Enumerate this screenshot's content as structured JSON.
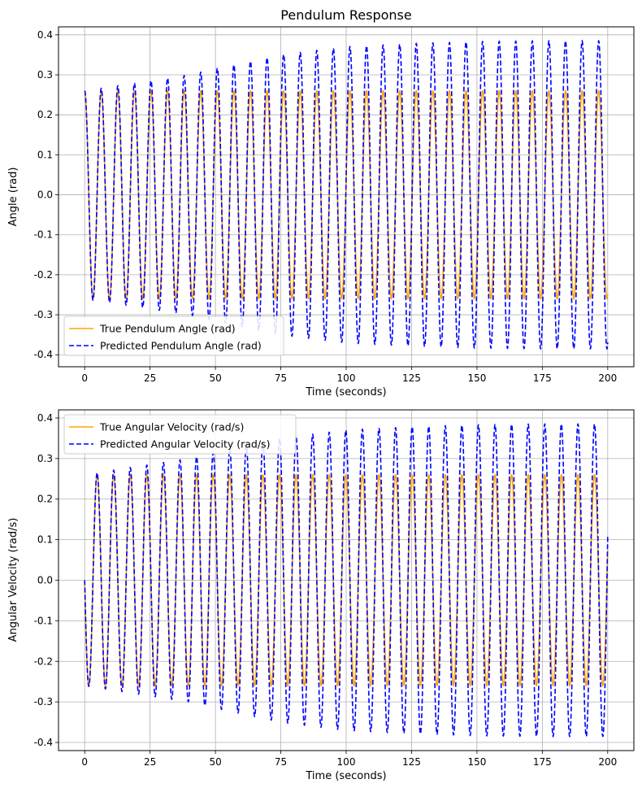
{
  "figure": {
    "background": "#ffffff"
  },
  "colors": {
    "true_line": "#ffa500",
    "pred_line": "#0000ff",
    "grid": "#b0b0b0"
  },
  "chart_data": [
    {
      "type": "line",
      "title": "Pendulum Response",
      "xlabel": "Time (seconds)",
      "ylabel": "Angle (rad)",
      "xlim": [
        -10,
        210
      ],
      "ylim": [
        -0.43,
        0.42
      ],
      "xticks": [
        0,
        25,
        50,
        75,
        100,
        125,
        150,
        175,
        200
      ],
      "yticks": [
        -0.4,
        -0.3,
        -0.2,
        -0.1,
        0.0,
        0.1,
        0.2,
        0.3,
        0.4
      ],
      "grid": true,
      "legend_position": "lower-left",
      "signal": "cosine",
      "period": 6.34,
      "t_range": [
        0,
        200
      ],
      "series": [
        {
          "name": "True Pendulum Angle (rad)",
          "style": "solid",
          "color": "#ffa500",
          "amplitude": 0.26
        },
        {
          "name": "Predicted Pendulum Angle (rad)",
          "style": "dashed",
          "color": "#0000ff",
          "amplitude_envelope": {
            "t": [
              0,
              10,
              25,
              40,
              50,
              75,
              100,
              125,
              150,
              175,
              200
            ],
            "amp": [
              0.26,
              0.27,
              0.285,
              0.3,
              0.315,
              0.35,
              0.37,
              0.378,
              0.383,
              0.385,
              0.385
            ]
          }
        }
      ]
    },
    {
      "type": "line",
      "title": "",
      "xlabel": "Time (seconds)",
      "ylabel": "Angular Velocity (rad/s)",
      "xlim": [
        -10,
        210
      ],
      "ylim": [
        -0.42,
        0.42
      ],
      "xticks": [
        0,
        25,
        50,
        75,
        100,
        125,
        150,
        175,
        200
      ],
      "yticks": [
        -0.4,
        -0.3,
        -0.2,
        -0.1,
        0.0,
        0.1,
        0.2,
        0.3,
        0.4
      ],
      "grid": true,
      "legend_position": "upper-left",
      "signal": "negative-sine",
      "period": 6.34,
      "t_range": [
        0,
        200
      ],
      "series": [
        {
          "name": "True Angular Velocity (rad/s)",
          "style": "solid",
          "color": "#ffa500",
          "amplitude": 0.26
        },
        {
          "name": "Predicted Angular Velocity (rad/s)",
          "style": "dashed",
          "color": "#0000ff",
          "amplitude_envelope": {
            "t": [
              0,
              10,
              25,
              40,
              50,
              75,
              100,
              125,
              150,
              175,
              200
            ],
            "amp": [
              0.26,
              0.27,
              0.285,
              0.3,
              0.315,
              0.35,
              0.37,
              0.378,
              0.383,
              0.385,
              0.385
            ]
          }
        }
      ]
    }
  ]
}
